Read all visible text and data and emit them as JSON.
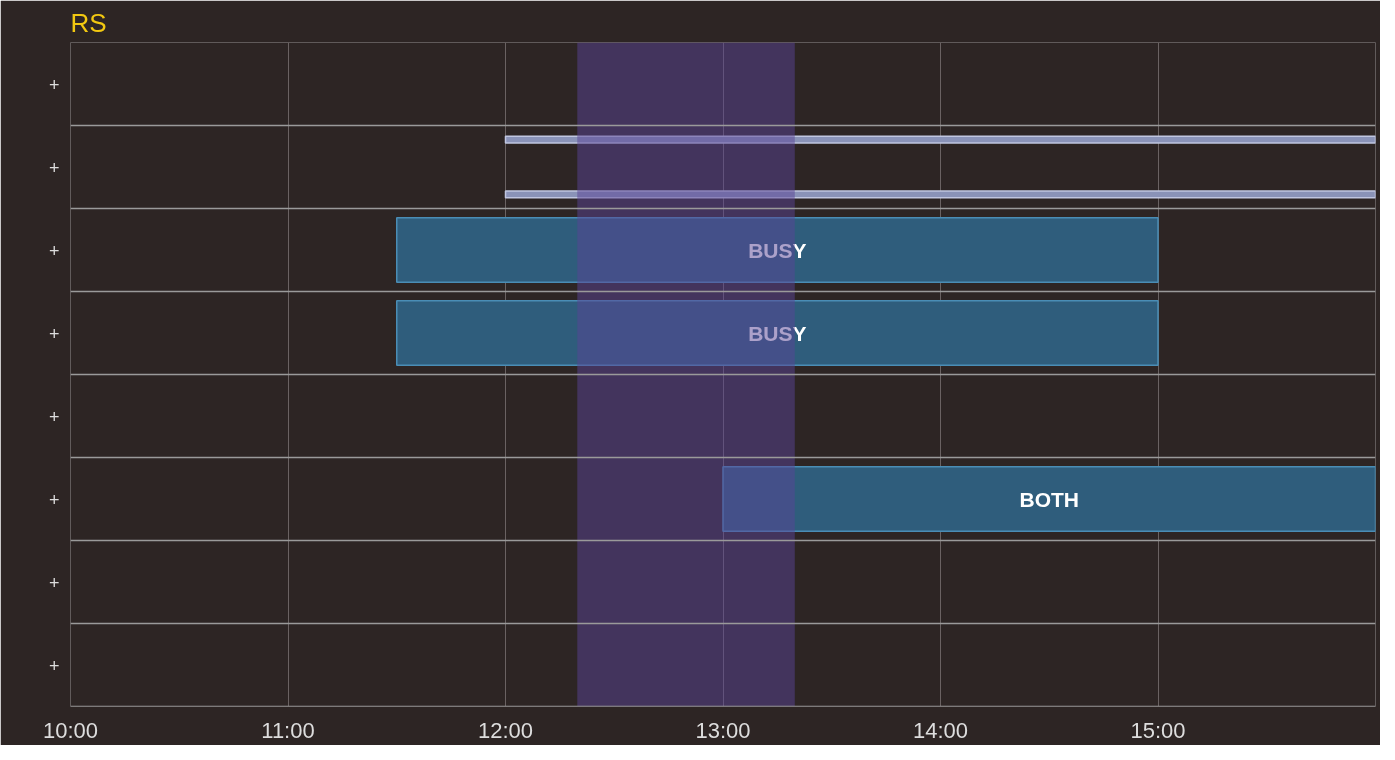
{
  "chart_data": {
    "type": "bar",
    "orientation": "horizontal",
    "title": "RS",
    "categories": [
      "+",
      "+",
      "+",
      "+",
      "+",
      "+",
      "+",
      "+"
    ],
    "series": [
      {
        "color": "#8a93b8",
        "base": [
          null,
          12,
          null,
          null,
          null,
          null,
          null,
          null
        ],
        "values": [
          null,
          4,
          null,
          null,
          null,
          null,
          null,
          null
        ]
      },
      {
        "color": "#8a93b8",
        "base": [
          null,
          12,
          null,
          null,
          null,
          null,
          null,
          null
        ],
        "values": [
          null,
          4,
          null,
          null,
          null,
          null,
          null,
          null
        ]
      },
      {
        "color": "#2f5d7c",
        "base": [
          null,
          null,
          11.5,
          11.5,
          null,
          13,
          null,
          null
        ],
        "values": [
          null,
          null,
          3.5,
          3.5,
          null,
          3,
          null,
          null
        ],
        "value_labels": [
          null,
          null,
          "BUSY",
          "BUSY",
          null,
          "BOTH",
          null,
          null
        ]
      }
    ],
    "xlim": [
      10,
      16
    ],
    "xticks": [
      {
        "value": 10,
        "label": "10:00"
      },
      {
        "value": 11,
        "label": "11:00"
      },
      {
        "value": 12,
        "label": "12:00"
      },
      {
        "value": 13,
        "label": "13:00"
      },
      {
        "value": 14,
        "label": "14:00"
      },
      {
        "value": 15,
        "label": "15:00"
      }
    ],
    "bands": [
      {
        "axis": "x",
        "from": 12.33,
        "to": 13.33,
        "color": "#5a4496"
      }
    ],
    "grid": "x"
  }
}
